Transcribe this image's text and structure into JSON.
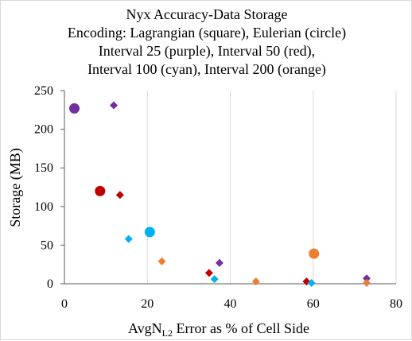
{
  "chart_data": {
    "type": "scatter",
    "title_lines": [
      "Nyx Accuracy-Data Storage",
      "Encoding: Lagrangian (square), Eulerian (circle)",
      "Interval 25 (purple), Interval 50 (red),",
      "Interval 100 (cyan), Interval 200 (orange)"
    ],
    "xlabel": {
      "main": "AvgN",
      "sub": "L2",
      "rest": " Error as % of Cell Side"
    },
    "ylabel": "Storage (MB)",
    "xlim": [
      0,
      80
    ],
    "ylim": [
      0,
      250
    ],
    "xticks": [
      0,
      20,
      40,
      60,
      80
    ],
    "yticks": [
      0,
      50,
      100,
      150,
      200,
      250
    ],
    "grid": {
      "vertical": true,
      "horizontal": false
    },
    "colors": {
      "purple": "#7030a0",
      "red": "#c00000",
      "cyan": "#00b0f0",
      "orange": "#ed7d31"
    },
    "series": [
      {
        "color": "purple",
        "points": [
          {
            "x": 2.4,
            "y": 227,
            "marker": "circle"
          },
          {
            "x": 11.9,
            "y": 231,
            "marker": "diamond"
          },
          {
            "x": 37.4,
            "y": 27,
            "marker": "diamond"
          },
          {
            "x": 72.9,
            "y": 7,
            "marker": "diamond"
          }
        ]
      },
      {
        "color": "red",
        "points": [
          {
            "x": 8.6,
            "y": 120,
            "marker": "circle"
          },
          {
            "x": 13.4,
            "y": 115,
            "marker": "diamond"
          },
          {
            "x": 34.9,
            "y": 14,
            "marker": "diamond"
          },
          {
            "x": 58.4,
            "y": 3,
            "marker": "diamond"
          }
        ]
      },
      {
        "color": "cyan",
        "points": [
          {
            "x": 20.6,
            "y": 67,
            "marker": "circle"
          },
          {
            "x": 15.5,
            "y": 58,
            "marker": "diamond"
          },
          {
            "x": 36.2,
            "y": 6,
            "marker": "diamond"
          },
          {
            "x": 59.6,
            "y": 1,
            "marker": "diamond"
          }
        ]
      },
      {
        "color": "orange",
        "points": [
          {
            "x": 60.2,
            "y": 39,
            "marker": "circle"
          },
          {
            "x": 23.5,
            "y": 29,
            "marker": "diamond"
          },
          {
            "x": 46.2,
            "y": 3,
            "marker": "diamond"
          },
          {
            "x": 72.9,
            "y": 1,
            "marker": "diamond"
          }
        ]
      }
    ]
  }
}
